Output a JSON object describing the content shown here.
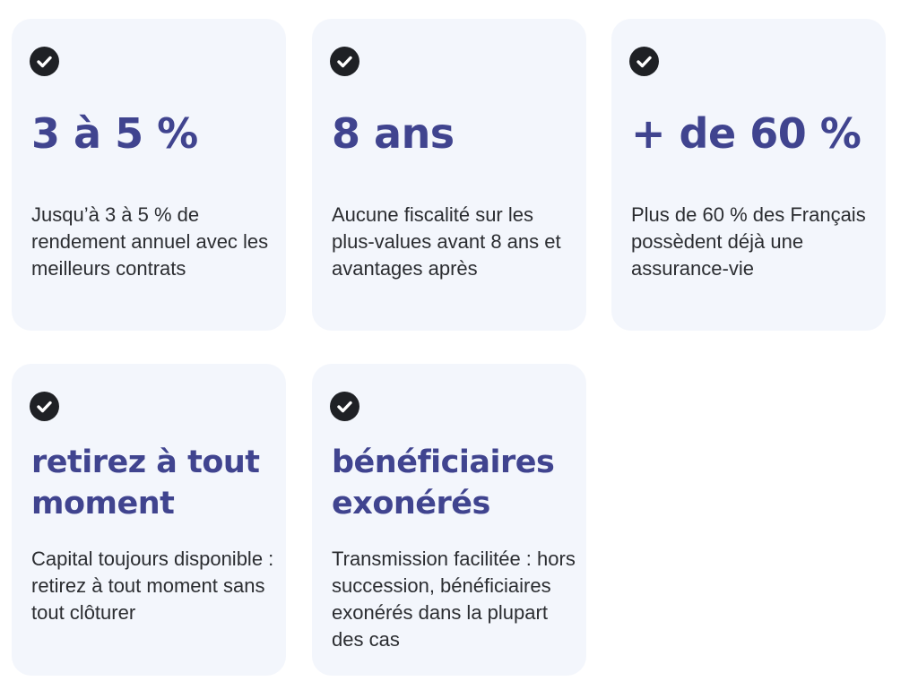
{
  "cards": [
    {
      "icon": "check-circle-icon",
      "headline": "3 à 5 %",
      "description": "Jusqu’à 3 à 5 % de rendement annuel avec les meilleurs contrats"
    },
    {
      "icon": "check-circle-icon",
      "headline": "8 ans",
      "description": "Aucune fiscalité sur les plus-values avant 8 ans et avantages après"
    },
    {
      "icon": "check-circle-icon",
      "headline": "+ de 60 %",
      "description": "Plus de 60 % des Français possèdent déjà une assurance-vie"
    },
    {
      "icon": "check-circle-icon",
      "headline": "retirez à tout moment",
      "description": "Capital toujours disponible : retirez à tout moment sans tout clôturer"
    },
    {
      "icon": "check-circle-icon",
      "headline": "bénéficiaires exonérés",
      "description": "Transmission facilitée : hors succession, bénéficiaires exonérés dans la plupart des cas"
    }
  ],
  "colors": {
    "card_background": "#f3f6fc",
    "headline": "#40448f",
    "text": "#2b2d31",
    "check_circle": "#1f2125"
  }
}
